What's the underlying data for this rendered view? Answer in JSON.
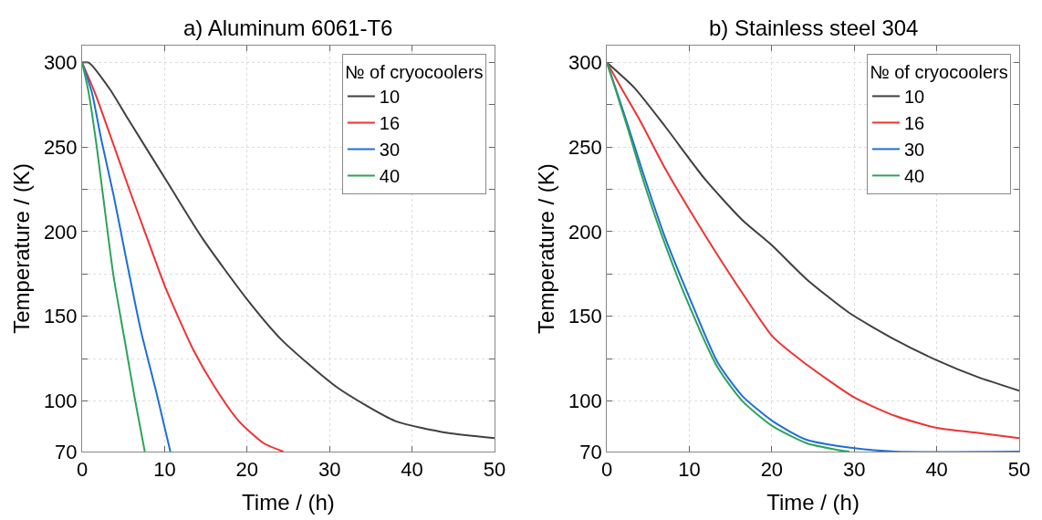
{
  "chart_data": [
    {
      "type": "line",
      "title": "a) Aluminum 6061-T6",
      "xlabel": "Time / (h)",
      "ylabel": "Temperature / (K)",
      "legend_title": "№ of cryocoolers",
      "legend": "top right",
      "grid": true,
      "line_style": "solid",
      "marker": "none",
      "xlim": [
        0,
        50
      ],
      "xticks": [
        0,
        10,
        20,
        30,
        40,
        50
      ],
      "ylim": [
        70,
        310
      ],
      "yticks": [
        70,
        100,
        {
          "value": 125,
          "label": null
        },
        150,
        {
          "value": 175,
          "label": null
        },
        200,
        {
          "value": 225,
          "label": null
        },
        250,
        {
          "value": 275,
          "label": null
        },
        300
      ],
      "series": [
        {
          "name": "10",
          "color": "#404040",
          "x": [
            0,
            0.8,
            3.4,
            5.65,
            10.5,
            14.6,
            20,
            24.2,
            30.9,
            38,
            44.3,
            50
          ],
          "values": [
            300,
            300,
            284,
            266,
            228,
            196,
            160,
            136,
            108,
            88,
            81,
            78
          ]
        },
        {
          "name": "16",
          "color": "#ee3333",
          "x": [
            0,
            1.56,
            3.4,
            5.65,
            7.9,
            10.1,
            13.5,
            16.1,
            19,
            22,
            24.4
          ],
          "values": [
            300,
            282,
            257,
            226,
            196,
            167,
            130,
            108,
            88,
            75,
            70
          ]
        },
        {
          "name": "30",
          "color": "#1f6fd6",
          "x": [
            0,
            1.2,
            2.3,
            3.8,
            5.3,
            7.1,
            9,
            10.7
          ],
          "values": [
            300,
            282,
            255,
            222,
            185,
            142,
            105,
            70
          ]
        },
        {
          "name": "40",
          "color": "#2ea35a",
          "x": [
            0,
            0.8,
            1.75,
            2.7,
            3.8,
            5.3,
            6.4,
            7.6
          ],
          "values": [
            300,
            282,
            251,
            215,
            174,
            132,
            101,
            70
          ]
        }
      ]
    },
    {
      "type": "line",
      "title": "b) Stainless steel 304",
      "xlabel": "Time / (h)",
      "ylabel": "Temperature / (K)",
      "legend_title": "№ of cryocoolers",
      "legend": "top right",
      "grid": true,
      "line_style": "solid",
      "marker": "none",
      "xlim": [
        0,
        50
      ],
      "xticks": [
        0,
        10,
        20,
        30,
        40,
        50
      ],
      "ylim": [
        70,
        310
      ],
      "yticks": [
        70,
        100,
        {
          "value": 125,
          "label": null
        },
        150,
        {
          "value": 175,
          "label": null
        },
        200,
        {
          "value": 225,
          "label": null
        },
        250,
        {
          "value": 275,
          "label": null
        },
        300
      ],
      "series": [
        {
          "name": "10",
          "color": "#404040",
          "x": [
            0,
            3.35,
            7.1,
            11.9,
            16.4,
            20,
            24.2,
            29.4,
            35,
            40,
            45,
            50
          ],
          "values": [
            300,
            285,
            262,
            231,
            207,
            192,
            172,
            152,
            136,
            124,
            114,
            106
          ]
        },
        {
          "name": "16",
          "color": "#ee3333",
          "x": [
            0,
            1.86,
            4.1,
            7.1,
            11.9,
            16.8,
            20.1,
            23.8,
            30,
            35,
            40,
            45,
            50
          ],
          "values": [
            300,
            284,
            265,
            237,
            198,
            161,
            138,
            123,
            102,
            91,
            84,
            81,
            78
          ]
        },
        {
          "name": "30",
          "color": "#1f6fd6",
          "x": [
            0,
            1.12,
            2.6,
            4.5,
            7.1,
            10.1,
            13.4,
            16.4,
            20.1,
            24.2,
            30,
            35,
            50
          ],
          "values": [
            300,
            284,
            262,
            233,
            196,
            160,
            123,
            103,
            88,
            77,
            72,
            70,
            70
          ]
        },
        {
          "name": "40",
          "color": "#2ea35a",
          "x": [
            0,
            1.12,
            2.6,
            4.5,
            7.1,
            10.1,
            13.4,
            16.4,
            20.1,
            24.2,
            28,
            29.4
          ],
          "values": [
            300,
            283,
            260,
            229,
            192,
            155,
            120,
            100,
            85,
            75,
            71,
            70
          ]
        }
      ]
    }
  ]
}
